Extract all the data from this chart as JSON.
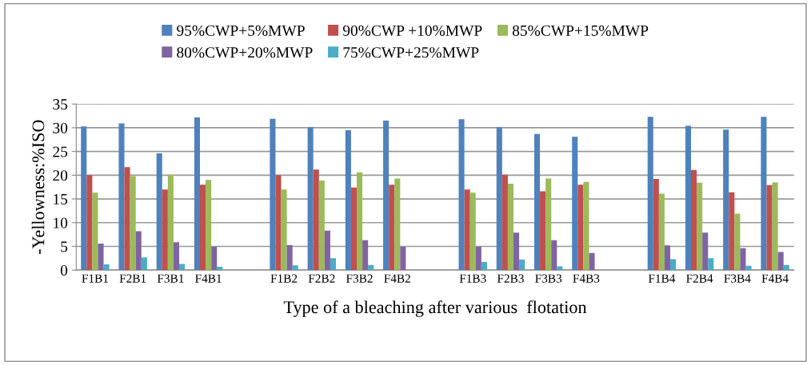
{
  "chart_data": {
    "type": "bar",
    "xlabel": "Type of a bleaching after various  flotation",
    "ylabel": "-Yellowness:%ISO",
    "categories": [
      "F1B1",
      "F2B1",
      "F3B1",
      "F4B1",
      null,
      "F1B2",
      "F2B2",
      "F3B2",
      "F4B2",
      null,
      "F1B3",
      "F2B3",
      "F3B3",
      "F4B3",
      null,
      "F1B4",
      "F2B4",
      "F3B4",
      "F4B4"
    ],
    "series": [
      {
        "name": "95%CWP+5%MWP",
        "color": "#4f81bd",
        "values": [
          30.3,
          30.9,
          24.6,
          32.2,
          null,
          31.9,
          30.1,
          29.5,
          31.5,
          null,
          31.8,
          30.1,
          28.7,
          28.1,
          null,
          32.3,
          30.4,
          29.6,
          32.3
        ]
      },
      {
        "name": "90%CWP +10%MWP",
        "color": "#c0504d",
        "values": [
          20.0,
          21.7,
          17.0,
          18.0,
          null,
          20.0,
          21.2,
          17.4,
          18.0,
          null,
          17.0,
          20.1,
          16.6,
          18.0,
          null,
          19.2,
          21.1,
          16.4,
          17.9
        ]
      },
      {
        "name": "85%CWP+15%MWP",
        "color": "#9bbb59",
        "values": [
          16.3,
          19.8,
          20.1,
          19.0,
          null,
          17.0,
          18.9,
          20.6,
          19.3,
          null,
          16.3,
          18.2,
          19.3,
          18.6,
          null,
          16.1,
          18.4,
          11.9,
          18.5
        ]
      },
      {
        "name": "80%CWP+20%MWP",
        "color": "#8064a2",
        "values": [
          5.6,
          8.2,
          5.9,
          4.9,
          null,
          5.3,
          8.3,
          6.3,
          4.9,
          null,
          4.9,
          7.9,
          6.3,
          3.6,
          null,
          5.2,
          7.9,
          4.6,
          3.8
        ]
      },
      {
        "name": "75%CWP+25%MWP",
        "color": "#4bacc6",
        "values": [
          1.2,
          2.7,
          1.3,
          0.7,
          null,
          1.0,
          2.5,
          1.1,
          null,
          null,
          1.7,
          2.2,
          0.8,
          null,
          null,
          2.3,
          2.5,
          0.9,
          1.1
        ]
      }
    ],
    "ylim": [
      0,
      35
    ],
    "yticks": [
      0,
      5,
      10,
      15,
      20,
      25,
      30,
      35
    ],
    "grid": "y",
    "legend": "top"
  }
}
